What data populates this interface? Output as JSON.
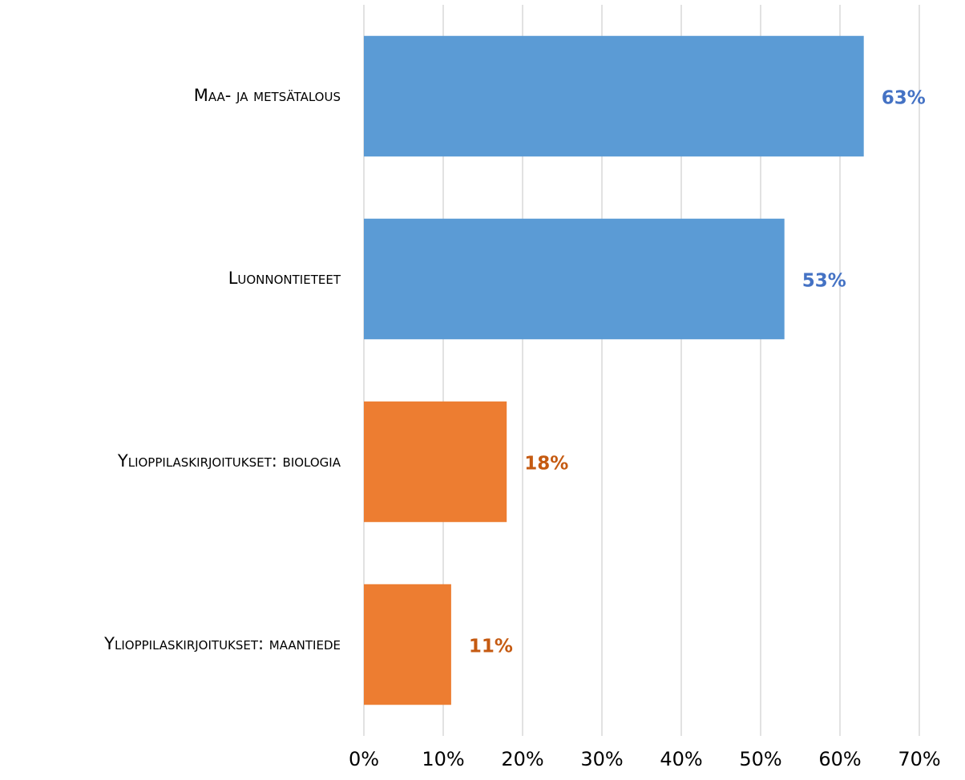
{
  "chart_data": {
    "type": "barh",
    "categories": [
      "Maa- ja metsätalous",
      "Luonnontieteet",
      "Ylioppilaskirjoitukset: biologia",
      "Ylioppilaskirjoitukset: maantiede"
    ],
    "values": [
      63,
      53,
      18,
      11
    ],
    "value_labels": [
      "63%",
      "53%",
      "18%",
      "11%"
    ],
    "colors": [
      "#5b9bd5",
      "#5b9bd5",
      "#ed7d31",
      "#ed7d31"
    ],
    "label_colors": [
      "#4472c4",
      "#4472c4",
      "#c55a11",
      "#c55a11"
    ],
    "xlim": [
      0,
      70
    ],
    "xticks": [
      {
        "value": 0,
        "label": "0%"
      },
      {
        "value": 10,
        "label": "10%"
      },
      {
        "value": 20,
        "label": "20%"
      },
      {
        "value": 30,
        "label": "30%"
      },
      {
        "value": 40,
        "label": "40%"
      },
      {
        "value": 50,
        "label": "50%"
      },
      {
        "value": 60,
        "label": "60%"
      },
      {
        "value": 70,
        "label": "70%"
      }
    ],
    "grid": true
  }
}
